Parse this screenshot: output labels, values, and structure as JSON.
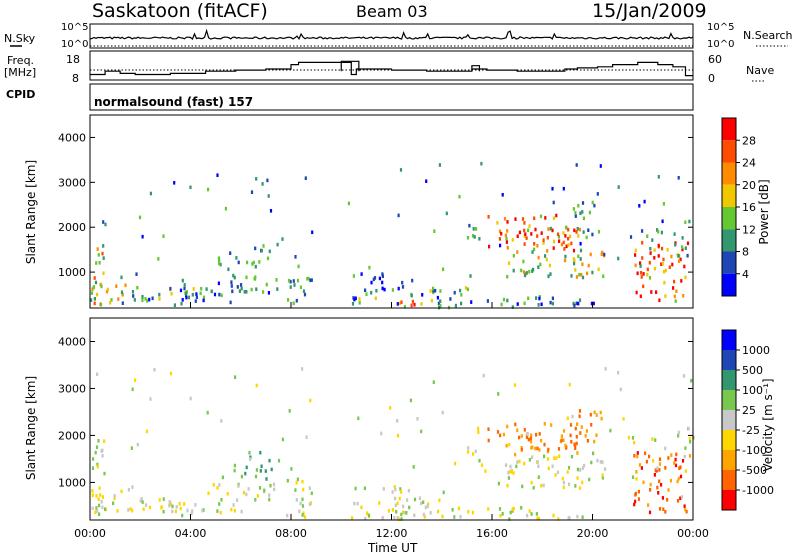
{
  "header": {
    "station": "Saskatoon (fitACF)",
    "beam": "Beam 03",
    "date": "15/Jan/2009"
  },
  "left_labels": {
    "nsky": "N.Sky",
    "freq_line1": "Freq.",
    "freq_line2": "[MHz]",
    "cpid": "CPID"
  },
  "right_labels": {
    "nsearch": "N.Search",
    "nave": "Nave"
  },
  "cpid_text": "normalsound (fast) 157",
  "colors": {
    "power": [
      "#0000ff",
      "#1e46b4",
      "#32966e",
      "#64c832",
      "#f0c800",
      "#ff8c00",
      "#ff4b00",
      "#ff0000"
    ],
    "velocity": [
      "#ff0000",
      "#ff6400",
      "#ffa500",
      "#ffd700",
      "#c8c8c8",
      "#78c850",
      "#32966e",
      "#1e46b4",
      "#0000ff"
    ]
  },
  "chart_data": [
    {
      "type": "line",
      "name": "noise",
      "ytick_labels": [
        "10^5",
        "10^0"
      ],
      "right_tick_labels": [
        "10^5",
        "10^0"
      ]
    },
    {
      "type": "line",
      "name": "frequency",
      "left_ticks": [
        18,
        8
      ],
      "right_ticks": [
        60,
        0
      ],
      "freq_steps": [
        [
          0,
          10.5
        ],
        [
          0.6,
          12
        ],
        [
          1.2,
          11
        ],
        [
          1.8,
          10.5
        ],
        [
          3.2,
          11
        ],
        [
          4.6,
          12
        ],
        [
          5.8,
          12.5
        ],
        [
          7.0,
          13
        ],
        [
          8.0,
          15
        ],
        [
          8.3,
          16
        ],
        [
          9.2,
          16
        ],
        [
          9.8,
          16
        ],
        [
          10.4,
          10.5
        ],
        [
          10.6,
          13
        ],
        [
          11.0,
          13
        ],
        [
          12.0,
          12.5
        ],
        [
          13.4,
          12
        ],
        [
          14.6,
          12
        ],
        [
          15.2,
          13
        ],
        [
          15.8,
          12.5
        ],
        [
          17.0,
          12
        ],
        [
          18.2,
          12
        ],
        [
          18.9,
          13
        ],
        [
          19.4,
          13.5
        ],
        [
          20.2,
          14
        ],
        [
          20.8,
          15
        ],
        [
          21.8,
          16
        ],
        [
          22.6,
          15
        ],
        [
          23.2,
          14
        ],
        [
          23.7,
          10
        ]
      ],
      "spikes": [
        [
          10.0,
          10.7,
          16.5
        ],
        [
          15.2,
          15.5,
          14.5
        ]
      ]
    },
    {
      "type": "heatmap",
      "name": "power",
      "ylabel": "Slant Range [km]",
      "yticks": [
        1000,
        2000,
        3000,
        4000
      ],
      "ylim": [
        200,
        4500
      ],
      "colorbar_label": "Power [dB]",
      "colorbar_ticks": [
        "28",
        "24",
        "20",
        "16",
        "12",
        "8",
        "4"
      ],
      "xlim": [
        0,
        24
      ]
    },
    {
      "type": "heatmap",
      "name": "velocity",
      "ylabel": "Slant Range [km]",
      "yticks": [
        1000,
        2000,
        3000,
        4000
      ],
      "ylim": [
        200,
        4500
      ],
      "colorbar_label": "Velocity [m s⁻¹]",
      "colorbar_ticks": [
        "1000",
        "500",
        "100",
        "25",
        "-25",
        "-100",
        "-500",
        "-1000"
      ],
      "xlim": [
        0,
        24
      ],
      "xlabel": "Time UT",
      "xtick_labels": [
        "00:00",
        "04:00",
        "08:00",
        "12:00",
        "16:00",
        "20:00",
        "00:00"
      ],
      "xtick_hours": [
        0,
        4,
        8,
        12,
        16,
        20,
        24
      ]
    }
  ]
}
